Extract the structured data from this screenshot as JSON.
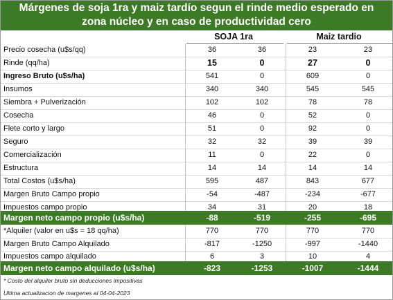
{
  "title": {
    "line1": "Márgenes de soja 1ra y maiz tardío segun el rinde medio esperado en",
    "line2": "zona núcleo y en caso de productividad cero"
  },
  "headers": {
    "soja": "SOJA 1ra",
    "maiz": "Maiz tardio"
  },
  "rows": [
    {
      "label": "Precio cosecha (u$s/qq)",
      "v": [
        "36",
        "36",
        "23",
        "23"
      ]
    },
    {
      "label": "Rinde (qq/ha)",
      "v": [
        "15",
        "0",
        "27",
        "0"
      ]
    },
    {
      "label": "Ingreso Bruto (u$s/ha)",
      "v": [
        "541",
        "0",
        "609",
        "0"
      ]
    },
    {
      "label": "Insumos",
      "v": [
        "340",
        "340",
        "545",
        "545"
      ]
    },
    {
      "label": "Siembra + Pulverización",
      "v": [
        "102",
        "102",
        "78",
        "78"
      ]
    },
    {
      "label": "Cosecha",
      "v": [
        "46",
        "0",
        "52",
        "0"
      ]
    },
    {
      "label": "Flete corto y largo",
      "v": [
        "51",
        "0",
        "92",
        "0"
      ]
    },
    {
      "label": "Seguro",
      "v": [
        "32",
        "32",
        "39",
        "39"
      ]
    },
    {
      "label": "Comercialización",
      "v": [
        "11",
        "0",
        "22",
        "0"
      ]
    },
    {
      "label": "Estructura",
      "v": [
        "14",
        "14",
        "14",
        "14"
      ]
    },
    {
      "label": "Total Costos (u$s/ha)",
      "v": [
        "595",
        "487",
        "843",
        "677"
      ]
    },
    {
      "label": "Margen Bruto Campo propio",
      "v": [
        "-54",
        "-487",
        "-234",
        "-677"
      ]
    },
    {
      "label": "Impuestos  campo propio",
      "v": [
        "34",
        "31",
        "20",
        "18"
      ]
    },
    {
      "label": "Margen neto campo propio (u$s/ha)",
      "v": [
        "-88",
        "-519",
        "-255",
        "-695"
      ]
    },
    {
      "label": "*Alquiler (valor en u$s = 18 qq/ha)",
      "v": [
        "770",
        "770",
        "770",
        "770"
      ]
    },
    {
      "label": "Margen Bruto Campo Alquilado",
      "v": [
        "-817",
        "-1250",
        "-997",
        "-1440"
      ]
    },
    {
      "label": "Impuestos campo alquilado",
      "v": [
        "6",
        "3",
        "10",
        "4"
      ]
    },
    {
      "label": "Margen neto campo alquilado (u$s/ha)",
      "v": [
        "-823",
        "-1253",
        "-1007",
        "-1444"
      ]
    }
  ],
  "footnotes": {
    "note1": "* Costo del alquiler bruto sin deducciones impositivas",
    "note2": "Ultima actualizacion de margenes al 04-04-2023"
  },
  "colors": {
    "header_green": "#3d7a26",
    "text": "#111111"
  }
}
